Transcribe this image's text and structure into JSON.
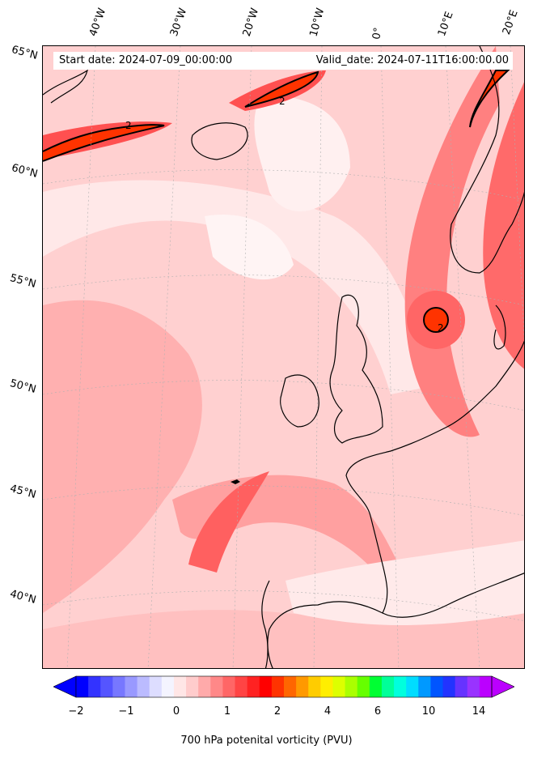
{
  "map": {
    "start_date_label": "Start date: 2024-07-09_00:00:00",
    "valid_date_label": "Valid_date: 2024-07-11T16:00:00.00",
    "variable_label": "700 hPa potenital vorticity (PVU)",
    "contour_label": "2",
    "longitude_labels": [
      "40°W",
      "30°W",
      "20°W",
      "10°W",
      "0°",
      "10°E",
      "20°E"
    ],
    "latitude_labels": [
      "65°N",
      "60°N",
      "55°N",
      "50°N",
      "45°N",
      "40°N"
    ],
    "colorbar_ticks": [
      "−2",
      "−1",
      "0",
      "1",
      "2",
      "4",
      "6",
      "10",
      "14"
    ],
    "colorbar_colors": [
      "#0000ff",
      "#3333ff",
      "#5555ff",
      "#7777ff",
      "#9999ff",
      "#bbbbff",
      "#ddddff",
      "#f4f4ff",
      "#ffe6e6",
      "#ffcccc",
      "#ffaaaa",
      "#ff8888",
      "#ff6666",
      "#ff4444",
      "#ff2222",
      "#ff0000",
      "#ff3300",
      "#ff6600",
      "#ff9900",
      "#ffcc00",
      "#ffee00",
      "#ddff00",
      "#aaff00",
      "#66ff00",
      "#00ff33",
      "#00ff99",
      "#00ffdd",
      "#00ddff",
      "#0099ff",
      "#0055ff",
      "#2233ff",
      "#6633ff",
      "#9933ff",
      "#bb00ff"
    ],
    "background_color": "#ffd6d6",
    "high_pv_color": "#ff2a1a",
    "coastline_color": "#000000"
  }
}
